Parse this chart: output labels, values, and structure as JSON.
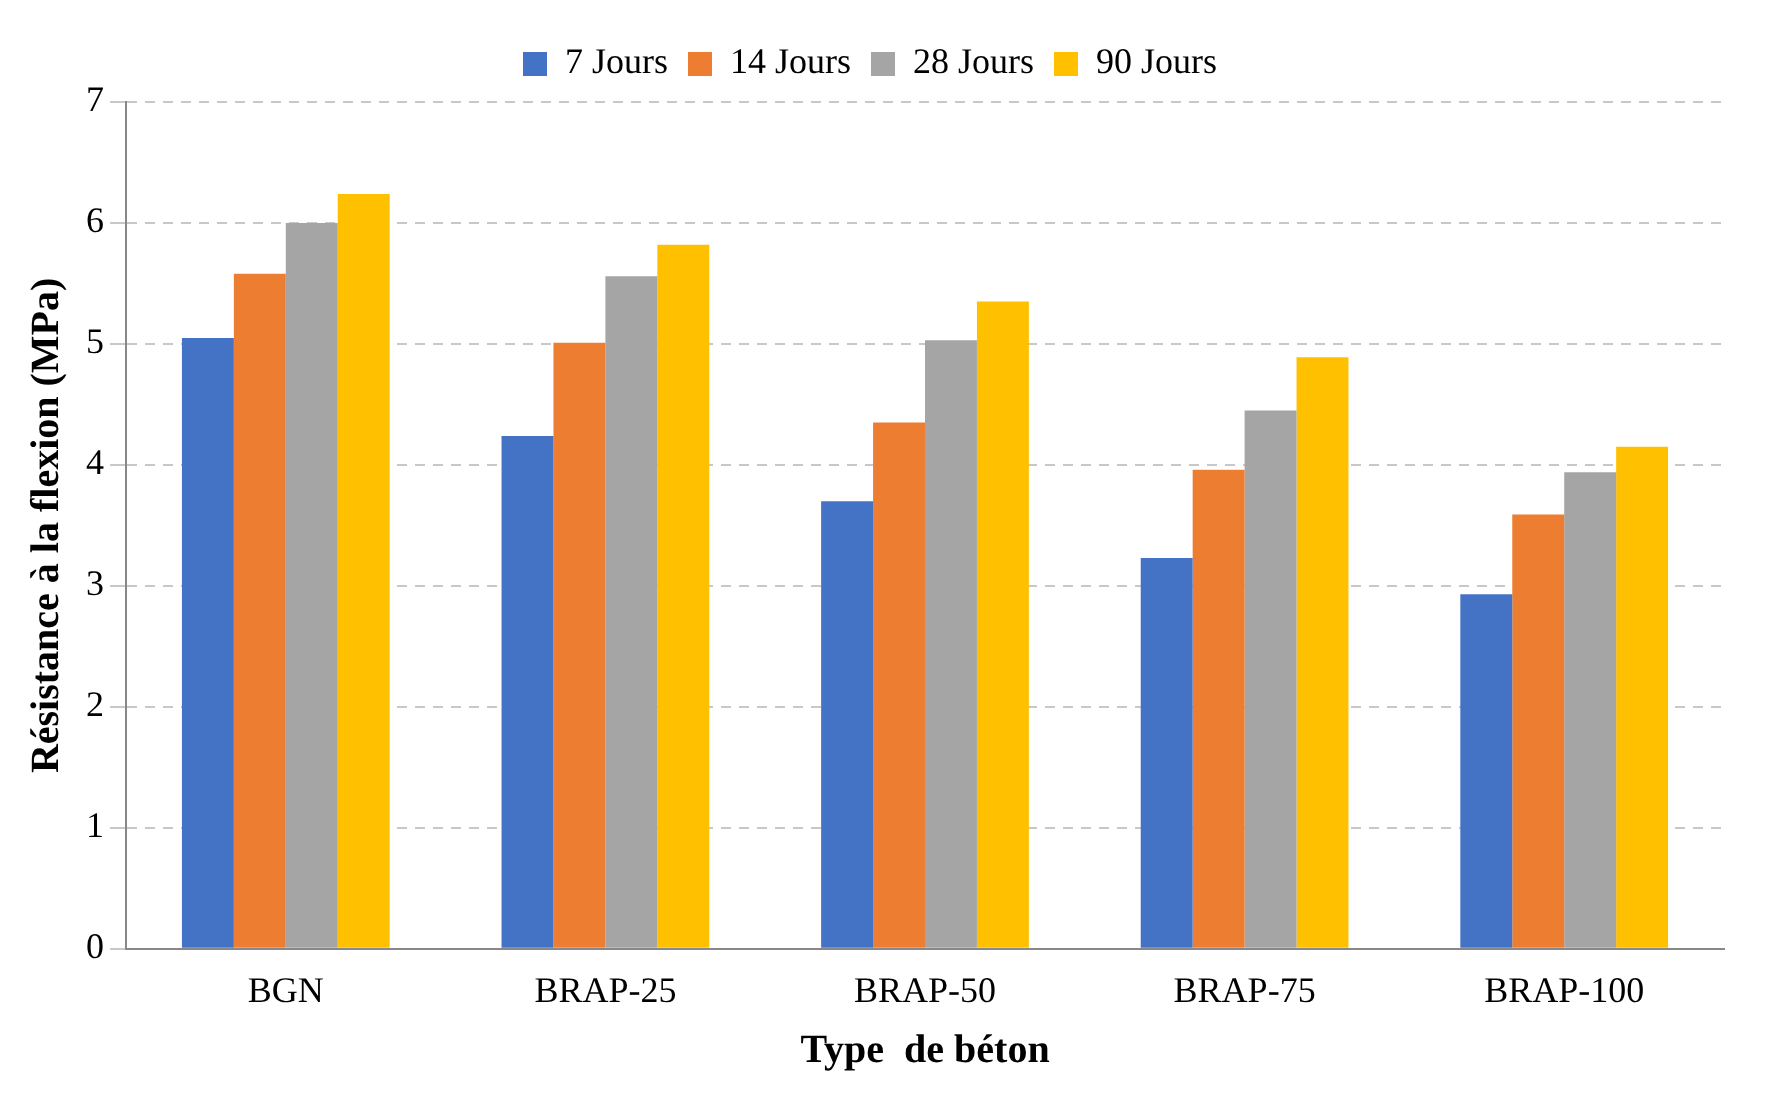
{
  "chart_data": {
    "type": "bar",
    "xlabel": "Type  de béton",
    "ylabel": "Résistance à la flexion (MPa)",
    "categories": [
      "BGN",
      "BRAP-25",
      "BRAP-50",
      "BRAP-75",
      "BRAP-100"
    ],
    "series": [
      {
        "name": "7 Jours",
        "color": "#4472c4",
        "values": [
          5.05,
          4.24,
          3.7,
          3.23,
          2.93
        ]
      },
      {
        "name": "14 Jours",
        "color": "#ed7d31",
        "values": [
          5.58,
          5.01,
          4.35,
          3.96,
          3.59
        ]
      },
      {
        "name": "28 Jours",
        "color": "#a5a5a5",
        "values": [
          6.0,
          5.56,
          5.03,
          4.45,
          3.94
        ]
      },
      {
        "name": "90 Jours",
        "color": "#ffc000",
        "values": [
          6.24,
          5.82,
          5.35,
          4.89,
          4.15
        ]
      }
    ],
    "ylim": [
      0,
      7
    ],
    "yticks": [
      0,
      1,
      2,
      3,
      4,
      5,
      6,
      7
    ],
    "grid": "y",
    "legend": "top"
  }
}
